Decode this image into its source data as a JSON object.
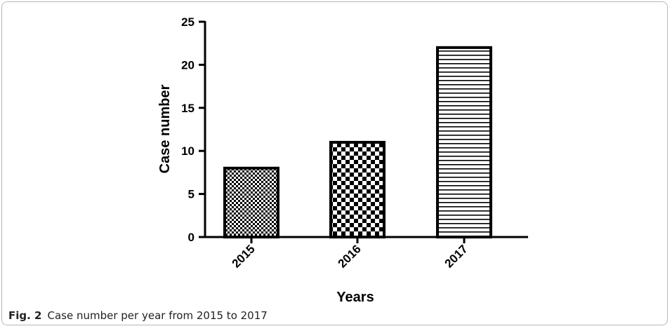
{
  "caption": {
    "label": "Fig. 2",
    "text": "Case number per year from 2015 to 2017"
  },
  "chart_data": {
    "type": "bar",
    "categories": [
      "2015",
      "2016",
      "2017"
    ],
    "values": [
      8,
      11,
      22
    ],
    "xlabel": "Years",
    "ylabel": "Case number",
    "ylim": [
      0,
      25
    ],
    "yticks": [
      0,
      5,
      10,
      15,
      20,
      25
    ],
    "grid": false,
    "legend": "none",
    "bar_patterns": [
      "fine-checker",
      "coarse-checker",
      "horizontal-lines"
    ],
    "colors": {
      "bar_stroke": "#000000",
      "bar_fill_primary": "#000000",
      "bar_fill_secondary": "#ffffff"
    }
  }
}
